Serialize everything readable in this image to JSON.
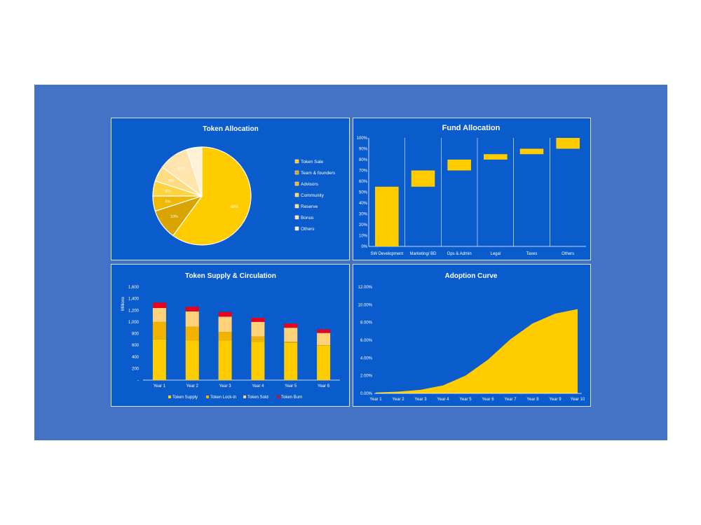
{
  "chart_data": [
    {
      "type": "pie",
      "title": "Token Allocation",
      "legend_position": "right",
      "slices": [
        {
          "label": "Token Sale",
          "value": 60,
          "pct_label": "60%",
          "color": "#ffcc00"
        },
        {
          "label": "Team & founders",
          "value": 10,
          "pct_label": "10%",
          "color": "#d9a300"
        },
        {
          "label": "Advisors",
          "value": 5,
          "pct_label": "5%",
          "color": "#f0b800"
        },
        {
          "label": "Community",
          "value": 5,
          "pct_label": "5%",
          "color": "#ffd23f"
        },
        {
          "label": "Reserve",
          "value": 5,
          "pct_label": "5%",
          "color": "#ffdc80"
        },
        {
          "label": "Bonus",
          "value": 10,
          "pct_label": "10%",
          "color": "#ffe4ad"
        },
        {
          "label": "Others",
          "value": 5,
          "pct_label": "5%",
          "color": "#fff1d6"
        }
      ]
    },
    {
      "type": "bar",
      "subtype": "floating",
      "title": "Fund Allocation",
      "categories": [
        "SW Development",
        "Marketing/ BD",
        "Ops & Admin",
        "Legal",
        "Taxes",
        "Others"
      ],
      "ranges": [
        [
          0,
          55
        ],
        [
          55,
          70
        ],
        [
          70,
          80
        ],
        [
          80,
          85
        ],
        [
          85,
          90
        ],
        [
          90,
          100
        ]
      ],
      "yticks": [
        "0%",
        "10%",
        "20%",
        "30%",
        "40%",
        "50%",
        "60%",
        "70%",
        "80%",
        "90%",
        "100%"
      ],
      "ylim": [
        0,
        100
      ],
      "color": "#ffcc00"
    },
    {
      "type": "bar",
      "subtype": "stacked",
      "title": "Token Supply & Circulation",
      "ylabel": "Millions",
      "categories": [
        "Year 1",
        "Year 2",
        "Year 3",
        "Year 4",
        "Year 5",
        "Year 6"
      ],
      "yticks": [
        "-",
        "200",
        "400",
        "600",
        "800",
        "1,000",
        "1,200",
        "1,400",
        "1,600"
      ],
      "ylim": [
        0,
        1600
      ],
      "legend_position": "bottom",
      "series": [
        {
          "name": "Token Supply",
          "color": "#ffcc00",
          "values": [
            700,
            680,
            680,
            660,
            640,
            590
          ]
        },
        {
          "name": "Token Lock-In",
          "color": "#f2b300",
          "values": [
            300,
            240,
            150,
            90,
            20,
            10
          ]
        },
        {
          "name": "Token Sold",
          "color": "#ffd27a",
          "values": [
            240,
            260,
            260,
            250,
            240,
            210
          ]
        },
        {
          "name": "Token Burn",
          "color": "#e8001c",
          "values": [
            90,
            80,
            80,
            70,
            70,
            60
          ]
        }
      ]
    },
    {
      "type": "area",
      "title": "Adoption Curve",
      "categories": [
        "Year 1",
        "Year 2",
        "Year 3",
        "Year 4",
        "Year 5",
        "Year 6",
        "Year 7",
        "Year 8",
        "Year 9",
        "Year 10"
      ],
      "values": [
        0.1,
        0.2,
        0.4,
        0.9,
        2.0,
        3.8,
        6.1,
        7.9,
        9.0,
        9.5
      ],
      "yticks": [
        "0.00%",
        "2.00%",
        "4.00%",
        "6.00%",
        "8.00%",
        "10.00%",
        "12.00%"
      ],
      "ylim": [
        0,
        12
      ],
      "color": "#ffcc00"
    }
  ]
}
